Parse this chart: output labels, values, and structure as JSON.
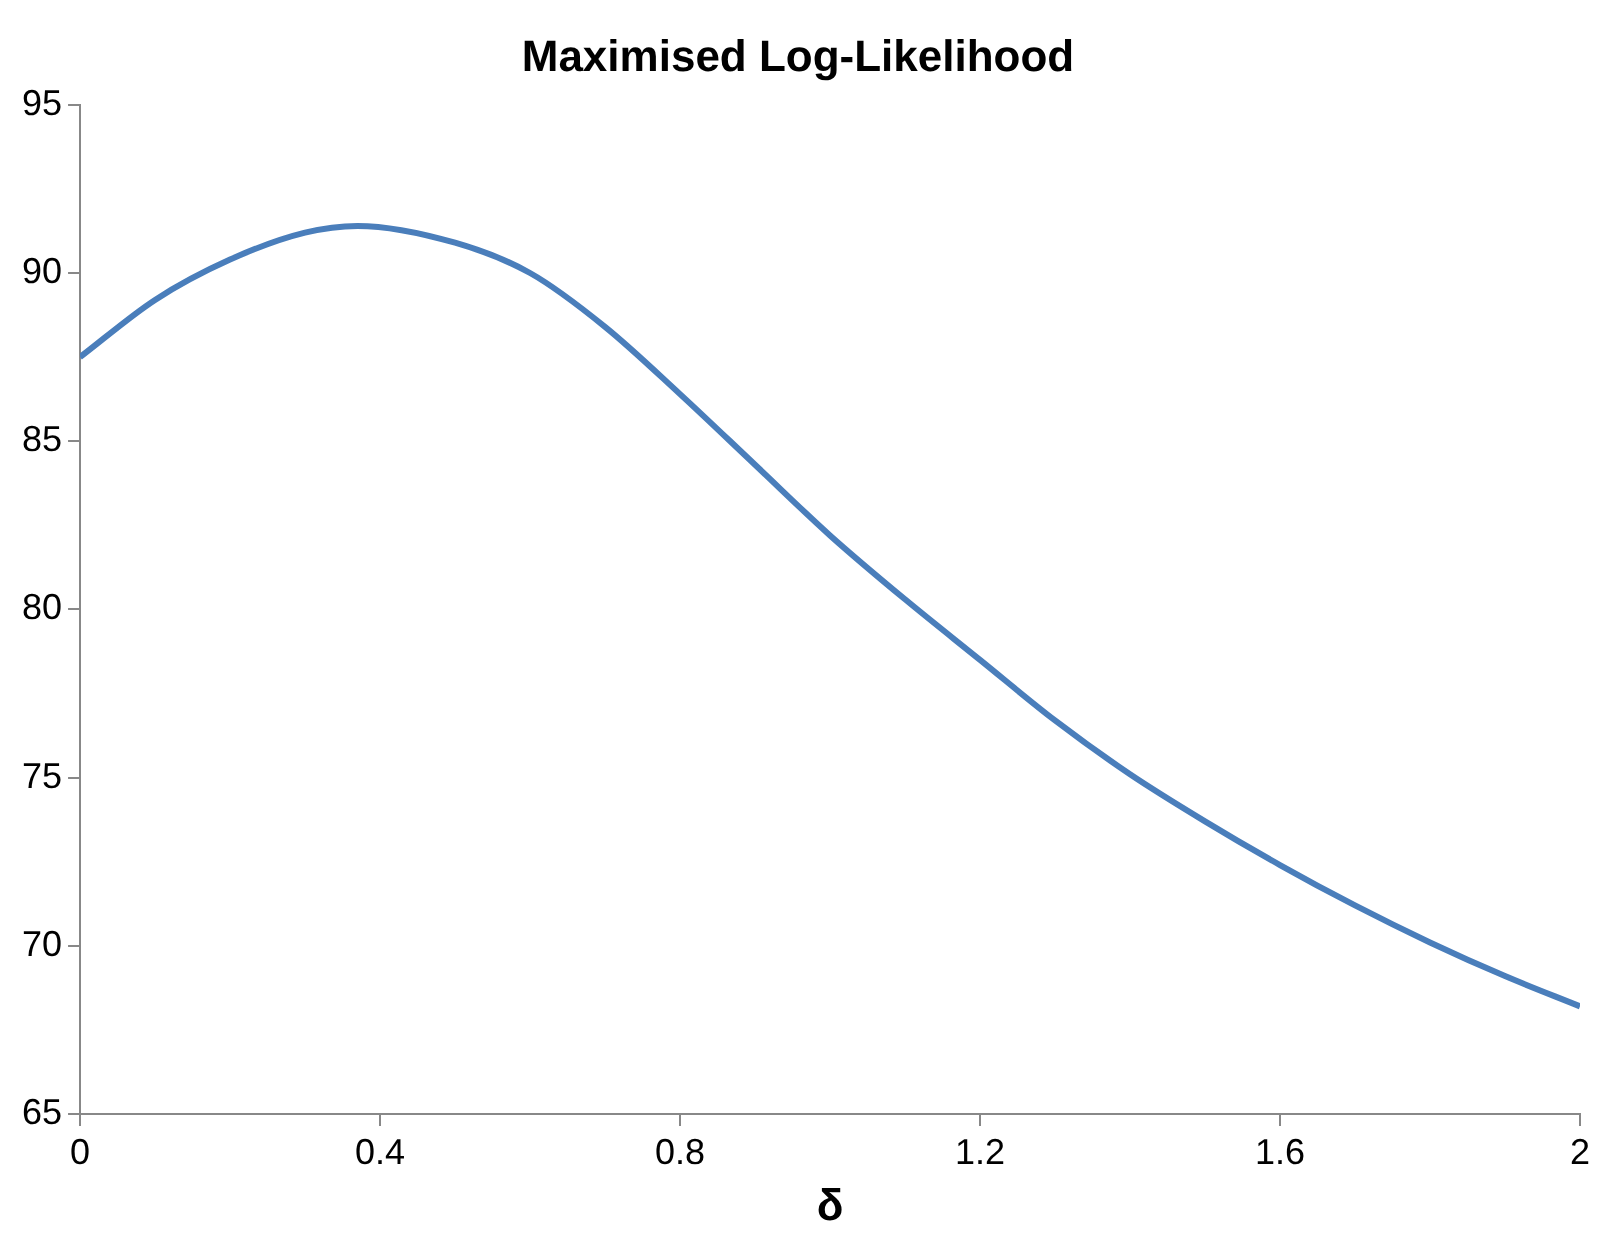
{
  "chart_data": {
    "type": "line",
    "title": "Maximised Log-Likelihood",
    "xlabel": "δ",
    "x": [
      0,
      0.1,
      0.2,
      0.3,
      0.37,
      0.5,
      0.6,
      0.7,
      0.8,
      0.9,
      1.0,
      1.1,
      1.2,
      1.3,
      1.4,
      1.5,
      1.6,
      1.7,
      1.8,
      1.9,
      2.0
    ],
    "series": [
      {
        "color": "#4a7ebb",
        "values": [
          87.5,
          89.2,
          90.4,
          91.2,
          91.4,
          90.9,
          90.0,
          88.4,
          86.4,
          84.3,
          82.2,
          80.3,
          78.5,
          76.7,
          75.1,
          73.7,
          72.4,
          71.2,
          70.1,
          69.1,
          68.2
        ]
      }
    ],
    "xlim": [
      0,
      2
    ],
    "xticks": [
      0,
      0.4,
      0.8,
      1.2,
      1.6,
      2
    ],
    "ylim": [
      65,
      95
    ],
    "yticks": [
      65,
      70,
      75,
      80,
      85,
      90,
      95
    ],
    "grid": false,
    "legend": false
  }
}
